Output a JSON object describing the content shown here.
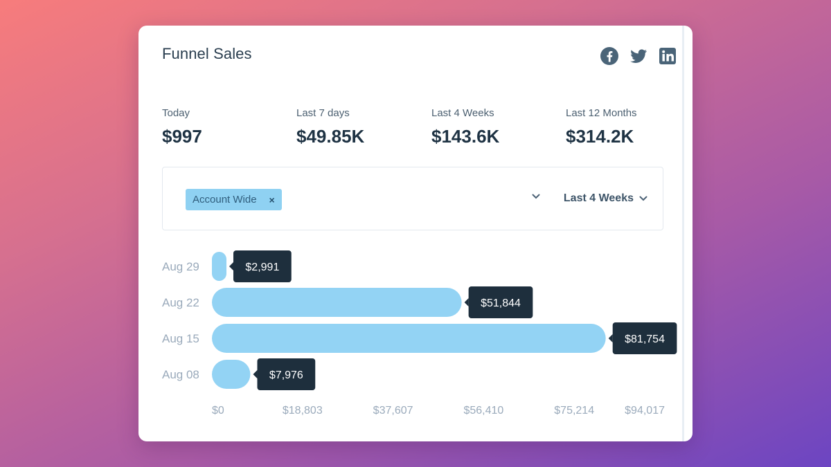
{
  "card": {
    "title": "Funnel Sales"
  },
  "social": [
    {
      "name": "facebook-icon",
      "color": "#4a6478"
    },
    {
      "name": "twitter-icon",
      "color": "#4a6478"
    },
    {
      "name": "linkedin-icon",
      "color": "#4a6478"
    }
  ],
  "stats": [
    {
      "label": "Today",
      "value": "$997"
    },
    {
      "label": "Last 7 days",
      "value": "$49.85K"
    },
    {
      "label": "Last 4 Weeks",
      "value": "$143.6K"
    },
    {
      "label": "Last 12 Months",
      "value": "$314.2K"
    }
  ],
  "filter": {
    "chip_label": "Account Wide",
    "chip_remove": "×",
    "range_label": "Last 4 Weeks"
  },
  "chart_data": {
    "type": "bar",
    "orientation": "horizontal",
    "categories": [
      "Aug 29",
      "Aug 22",
      "Aug 15",
      "Aug 08"
    ],
    "values": [
      2991,
      51844,
      81754,
      7976
    ],
    "data_labels": [
      "$2,991",
      "$51,844",
      "$81,754",
      "$7,976"
    ],
    "x_ticks": [
      0,
      18803,
      37607,
      56410,
      75214,
      94017
    ],
    "x_tick_labels": [
      "$0",
      "$18,803",
      "$37,607",
      "$56,410",
      "$75,214",
      "$94,017"
    ],
    "xlim": [
      0,
      94017
    ],
    "bar_color": "#93d3f4",
    "label_bg": "#1e2f3d",
    "grid": false
  }
}
